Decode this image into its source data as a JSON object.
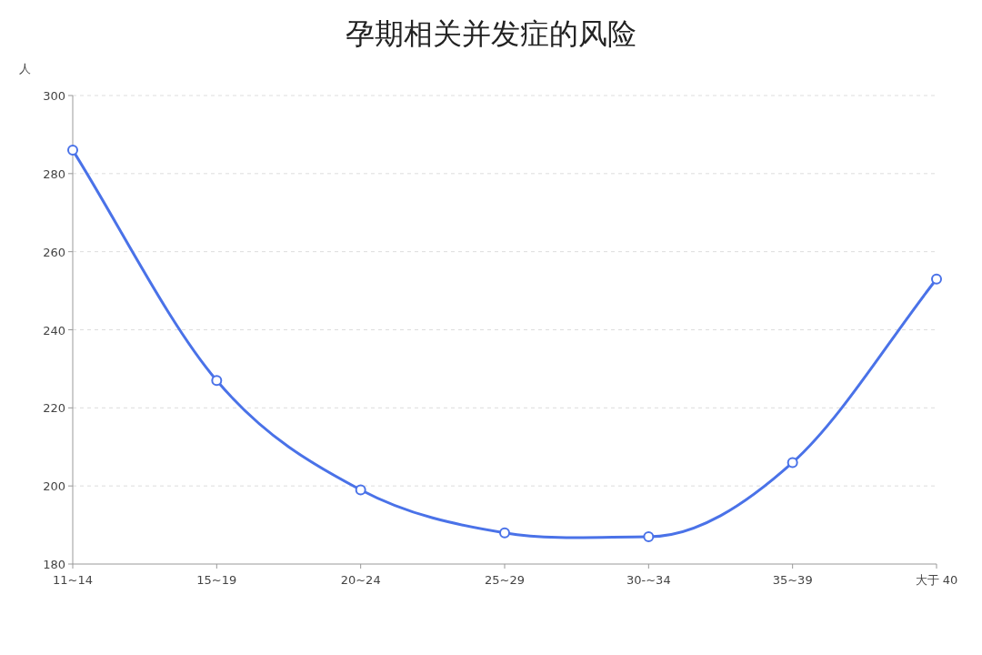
{
  "chart_data": {
    "type": "line",
    "title": "孕期相关并发症的风险",
    "ylabel": "人",
    "categories": [
      "11~14",
      "15~19",
      "20~24",
      "25~29",
      "30-~34",
      "35~39",
      "大于 40"
    ],
    "values": [
      286,
      227,
      199,
      188,
      187,
      206,
      253
    ],
    "color": "#4a72e8",
    "ylim": [
      180,
      300
    ],
    "yticks": [
      180,
      200,
      220,
      240,
      260,
      280,
      300
    ],
    "grid": "y",
    "marker": "circle",
    "line_style": "solid"
  }
}
